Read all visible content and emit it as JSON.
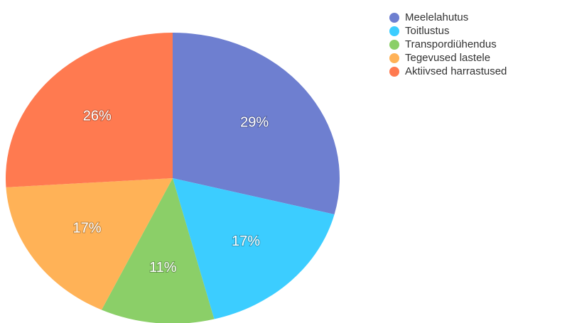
{
  "chart_data": {
    "type": "pie",
    "categories": [
      "Meelelahutus",
      "Toitlustus",
      "Transpordiühendus",
      "Tegevused lastele",
      "Aktiivsed harrastused"
    ],
    "values": [
      29,
      17,
      11,
      17,
      26
    ],
    "value_labels": [
      "29%",
      "17%",
      "11%",
      "17%",
      "26%"
    ],
    "colors": [
      "#6e7fd0",
      "#3ccdff",
      "#8bcf68",
      "#ffb257",
      "#ff7a50"
    ],
    "legend": "top-right"
  }
}
